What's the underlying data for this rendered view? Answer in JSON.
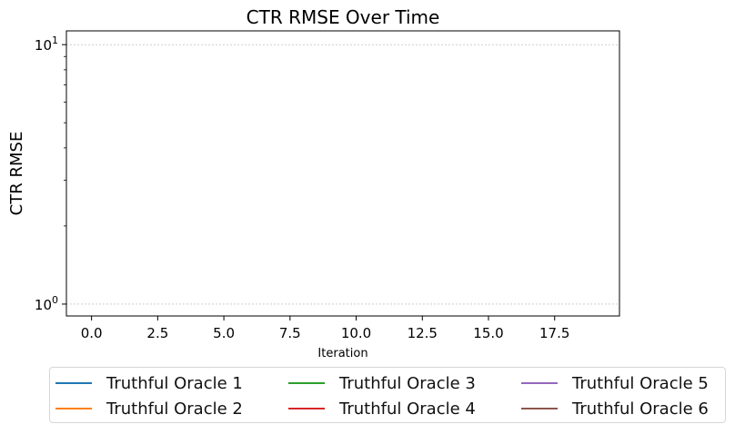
{
  "chart_data": {
    "type": "line",
    "title": "CTR RMSE Over Time",
    "xlabel": "Iteration",
    "ylabel": "CTR RMSE",
    "xlim": [
      -0.95,
      19.95
    ],
    "ylim": [
      0.9,
      11.3
    ],
    "yscale": "log",
    "xticks": [
      0,
      2.5,
      5,
      7.5,
      10,
      12.5,
      15,
      17.5
    ],
    "xtick_labels": [
      "0.0",
      "2.5",
      "5.0",
      "7.5",
      "10.0",
      "12.5",
      "15.0",
      "17.5"
    ],
    "yticks": [
      1,
      10
    ],
    "grid": "horizontal dashed",
    "legend_position": "bottom, 3 columns",
    "series": [
      {
        "name": "Truthful Oracle 1",
        "color": "#1f77b4",
        "values": []
      },
      {
        "name": "Truthful Oracle 2",
        "color": "#ff7f0e",
        "values": []
      },
      {
        "name": "Truthful Oracle 3",
        "color": "#2ca02c",
        "values": []
      },
      {
        "name": "Truthful Oracle 4",
        "color": "#d62728",
        "values": []
      },
      {
        "name": "Truthful Oracle 5",
        "color": "#9467bd",
        "values": []
      },
      {
        "name": "Truthful Oracle 6",
        "color": "#8c564b",
        "values": []
      }
    ]
  }
}
